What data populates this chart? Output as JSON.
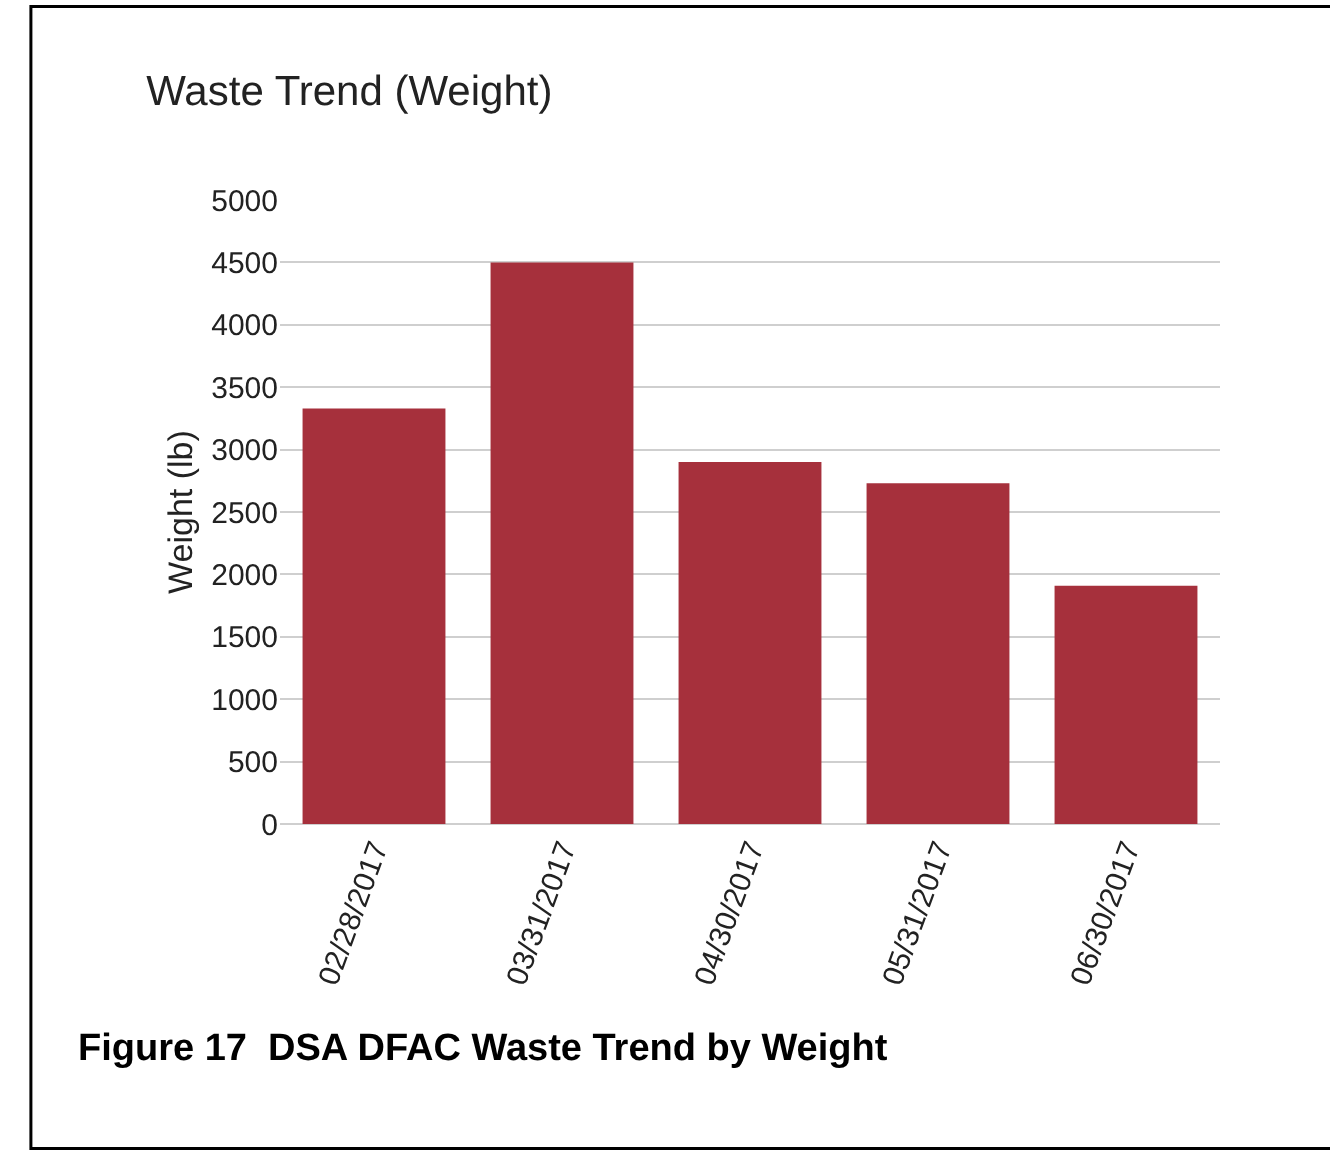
{
  "chart_data": {
    "type": "bar",
    "title": "Waste Trend (Weight)",
    "ylabel": "Weight (lb)",
    "categories": [
      "02/28/2017",
      "03/31/2017",
      "04/30/2017",
      "05/31/2017",
      "06/30/2017"
    ],
    "values": [
      3330,
      4500,
      2900,
      2730,
      1910
    ],
    "color": "#a6303c",
    "ylim": [
      0,
      5000
    ],
    "yticks": [
      0,
      500,
      1000,
      1500,
      2000,
      2500,
      3000,
      3500,
      4000,
      4500,
      5000
    ],
    "grid": "y",
    "legend": false,
    "annotations": [
      "Figure 17  DSA DFAC Waste Trend by Weight"
    ]
  }
}
